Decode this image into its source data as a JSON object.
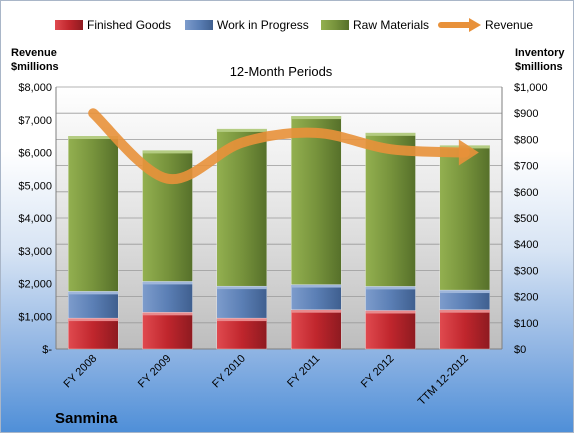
{
  "company": "Sanmina",
  "chart_data": {
    "type": "bar",
    "stacked": true,
    "title": "12-Month Periods",
    "categories": [
      "FY 2008",
      "FY 2009",
      "FY 2010",
      "FY 2011",
      "FY 2012",
      "TTM 12-2012"
    ],
    "series": [
      {
        "name": "Finished Goods",
        "axis": "right",
        "color": "#c0262d",
        "values": [
          118,
          140,
          118,
          150,
          147,
          150
        ]
      },
      {
        "name": "Work in Progress",
        "axis": "right",
        "color": "#5b7fb5",
        "values": [
          102,
          118,
          122,
          96,
          92,
          75
        ]
      },
      {
        "name": "Raw Materials",
        "axis": "right",
        "color": "#77933c",
        "values": [
          593,
          500,
          600,
          643,
          586,
          552
        ]
      },
      {
        "name": "Revenue",
        "axis": "left",
        "type": "line",
        "color": "#e8913a",
        "values": [
          7200,
          5200,
          6300,
          6600,
          6100,
          6000
        ]
      }
    ],
    "left_axis": {
      "title": [
        "Revenue",
        "$millions"
      ],
      "ylim": [
        0,
        8000
      ],
      "ticks": [
        "$-",
        "$1,000",
        "$2,000",
        "$3,000",
        "$4,000",
        "$5,000",
        "$6,000",
        "$7,000",
        "$8,000"
      ]
    },
    "right_axis": {
      "title": [
        "Inventory",
        "$millions"
      ],
      "ylim": [
        0,
        1000
      ],
      "ticks": [
        "$0",
        "$100",
        "$200",
        "$300",
        "$400",
        "$500",
        "$600",
        "$700",
        "$800",
        "$900",
        "$1,000"
      ]
    },
    "legend_position": "top",
    "grid": true
  }
}
